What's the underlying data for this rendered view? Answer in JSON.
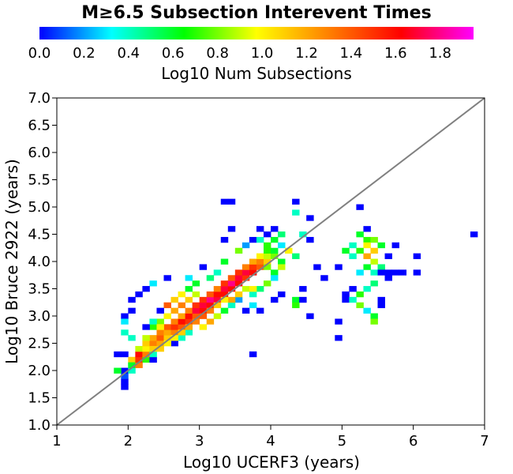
{
  "chart_data": {
    "type": "heatmap",
    "title": "M≥6.5 Subsection Interevent Times",
    "colorbar": {
      "label": "Log10 Num Subsections",
      "range": [
        0.0,
        1.95
      ],
      "ticks": [
        "0.0",
        "0.2",
        "0.4",
        "0.6",
        "0.8",
        "1.0",
        "1.2",
        "1.4",
        "1.6",
        "1.8"
      ],
      "colors": [
        "#0000ff",
        "#00ffff",
        "#00ff00",
        "#ffff00",
        "#ff8000",
        "#ff0000",
        "#ff00ff"
      ]
    },
    "xlabel": "Log10 UCERF3 (years)",
    "ylabel": "Log10 Bruce 2922 (years)",
    "xlim": [
      1,
      7
    ],
    "ylim": [
      1.0,
      7.0
    ],
    "xticks": [
      "1",
      "2",
      "3",
      "4",
      "5",
      "6",
      "7"
    ],
    "yticks": [
      "1.0",
      "1.5",
      "2.0",
      "2.5",
      "3.0",
      "3.5",
      "4.0",
      "4.5",
      "5.0",
      "5.5",
      "6.0",
      "6.5",
      "7.0"
    ],
    "reference_line": {
      "from": [
        1,
        1
      ],
      "to": [
        7,
        7
      ]
    },
    "bin_size": [
      0.1,
      0.1
    ],
    "cells": [
      [
        1.95,
        1.7,
        0.0
      ],
      [
        1.95,
        1.8,
        0.0
      ],
      [
        1.95,
        1.9,
        0.1
      ],
      [
        1.95,
        2.0,
        0.0
      ],
      [
        1.85,
        2.0,
        0.6
      ],
      [
        1.85,
        2.3,
        0.0
      ],
      [
        1.95,
        2.3,
        0.0
      ],
      [
        2.05,
        2.0,
        0.4
      ],
      [
        2.05,
        2.1,
        0.5
      ],
      [
        2.05,
        2.2,
        1.1
      ],
      [
        2.05,
        2.1,
        0.6
      ],
      [
        2.15,
        2.1,
        1.3
      ],
      [
        2.15,
        2.2,
        1.5
      ],
      [
        2.15,
        2.3,
        1.6
      ],
      [
        2.15,
        2.4,
        0.9
      ],
      [
        2.25,
        2.2,
        0.7
      ],
      [
        2.25,
        2.3,
        1.3
      ],
      [
        2.25,
        2.4,
        1.0
      ],
      [
        2.25,
        2.5,
        1.1
      ],
      [
        2.35,
        2.2,
        0.0
      ],
      [
        2.35,
        2.3,
        0.4
      ],
      [
        2.35,
        2.5,
        1.3
      ],
      [
        2.35,
        2.6,
        1.2
      ],
      [
        2.45,
        2.5,
        1.2
      ],
      [
        2.45,
        2.6,
        1.4
      ],
      [
        2.45,
        2.7,
        1.3
      ],
      [
        2.55,
        2.6,
        1.1
      ],
      [
        2.55,
        2.7,
        1.2
      ],
      [
        2.55,
        2.8,
        1.4
      ],
      [
        2.65,
        2.7,
        1.3
      ],
      [
        2.65,
        2.8,
        1.5
      ],
      [
        2.65,
        2.9,
        1.3
      ],
      [
        2.75,
        2.8,
        1.4
      ],
      [
        2.75,
        2.9,
        1.6
      ],
      [
        2.75,
        3.0,
        1.2
      ],
      [
        2.85,
        2.9,
        1.5
      ],
      [
        2.85,
        3.0,
        1.6
      ],
      [
        2.85,
        3.1,
        1.3
      ],
      [
        2.95,
        3.0,
        1.4
      ],
      [
        2.95,
        3.1,
        1.7
      ],
      [
        2.95,
        3.2,
        1.5
      ],
      [
        3.05,
        3.1,
        1.6
      ],
      [
        3.05,
        3.2,
        1.7
      ],
      [
        3.05,
        3.3,
        1.5
      ],
      [
        3.15,
        3.2,
        1.6
      ],
      [
        3.15,
        3.3,
        1.8
      ],
      [
        3.15,
        3.4,
        1.4
      ],
      [
        3.25,
        3.3,
        1.7
      ],
      [
        3.25,
        3.4,
        1.6
      ],
      [
        3.25,
        3.5,
        1.3
      ],
      [
        3.35,
        3.4,
        1.6
      ],
      [
        3.35,
        3.5,
        1.7
      ],
      [
        3.35,
        3.6,
        1.5
      ],
      [
        3.45,
        3.5,
        1.6
      ],
      [
        3.45,
        3.6,
        1.8
      ],
      [
        3.45,
        3.7,
        1.4
      ],
      [
        3.55,
        3.6,
        1.6
      ],
      [
        3.55,
        3.7,
        1.7
      ],
      [
        3.55,
        3.8,
        1.5
      ],
      [
        3.65,
        3.7,
        1.5
      ],
      [
        3.65,
        3.8,
        1.7
      ],
      [
        3.65,
        3.9,
        1.3
      ],
      [
        3.75,
        3.8,
        1.6
      ],
      [
        3.75,
        3.9,
        1.5
      ],
      [
        3.75,
        4.0,
        1.2
      ],
      [
        3.85,
        3.9,
        1.4
      ],
      [
        3.85,
        4.0,
        1.3
      ],
      [
        3.85,
        4.1,
        1.0
      ],
      [
        3.95,
        4.0,
        1.1
      ],
      [
        3.95,
        4.1,
        0.9
      ],
      [
        3.95,
        4.2,
        0.7
      ],
      [
        4.05,
        4.1,
        0.8
      ],
      [
        4.05,
        4.2,
        0.6
      ],
      [
        4.15,
        4.0,
        0.6
      ],
      [
        4.15,
        3.9,
        0.9
      ],
      [
        2.35,
        2.8,
        0.7
      ],
      [
        2.45,
        2.9,
        0.8
      ],
      [
        2.55,
        3.0,
        1.0
      ],
      [
        2.65,
        3.1,
        1.2
      ],
      [
        2.75,
        3.2,
        1.3
      ],
      [
        2.85,
        3.3,
        1.1
      ],
      [
        2.95,
        3.4,
        0.9
      ],
      [
        2.55,
        3.2,
        1.4
      ],
      [
        2.65,
        3.3,
        1.1
      ],
      [
        2.75,
        3.4,
        1.0
      ],
      [
        2.85,
        3.5,
        0.6
      ],
      [
        3.05,
        2.8,
        1.0
      ],
      [
        3.15,
        2.9,
        1.2
      ],
      [
        3.25,
        3.0,
        0.9
      ],
      [
        3.35,
        3.1,
        0.6
      ],
      [
        3.45,
        3.2,
        0.4
      ],
      [
        3.55,
        3.3,
        0.2
      ],
      [
        3.65,
        3.1,
        0.0
      ],
      [
        3.75,
        3.2,
        0.3
      ],
      [
        3.85,
        3.1,
        0.0
      ],
      [
        4.05,
        3.3,
        0.0
      ],
      [
        4.15,
        3.4,
        0.0
      ],
      [
        4.35,
        3.3,
        0.6
      ],
      [
        4.35,
        3.2,
        0.7
      ],
      [
        4.45,
        3.3,
        0.0
      ],
      [
        4.45,
        3.5,
        0.0
      ],
      [
        4.55,
        3.0,
        0.0
      ],
      [
        3.75,
        2.3,
        0.0
      ],
      [
        3.35,
        4.4,
        0.0
      ],
      [
        3.45,
        4.6,
        0.0
      ],
      [
        3.45,
        5.1,
        0.0
      ],
      [
        3.35,
        5.1,
        0.0
      ],
      [
        3.75,
        4.4,
        0.0
      ],
      [
        4.35,
        5.1,
        0.0
      ],
      [
        4.35,
        4.9,
        0.4
      ],
      [
        4.55,
        4.8,
        0.0
      ],
      [
        4.45,
        4.5,
        0.4
      ],
      [
        4.55,
        4.4,
        0.0
      ],
      [
        4.65,
        3.9,
        0.0
      ],
      [
        4.95,
        3.9,
        0.0
      ],
      [
        4.75,
        3.7,
        0.0
      ],
      [
        4.05,
        4.4,
        0.6
      ],
      [
        4.15,
        4.3,
        0.3
      ],
      [
        4.25,
        4.2,
        1.0
      ],
      [
        4.35,
        4.1,
        0.5
      ],
      [
        3.95,
        4.3,
        0.7
      ],
      [
        3.85,
        4.4,
        0.4
      ],
      [
        3.65,
        4.3,
        0.2
      ],
      [
        3.55,
        4.2,
        0.8
      ],
      [
        3.35,
        4.0,
        0.6
      ],
      [
        3.25,
        3.8,
        0.4
      ],
      [
        3.05,
        3.9,
        0.0
      ],
      [
        3.15,
        3.7,
        0.5
      ],
      [
        2.95,
        3.6,
        0.6
      ],
      [
        2.85,
        3.7,
        0.3
      ],
      [
        2.55,
        3.7,
        0.0
      ],
      [
        2.35,
        3.6,
        0.3
      ],
      [
        2.25,
        3.5,
        0.0
      ],
      [
        2.15,
        3.4,
        0.0
      ],
      [
        2.05,
        3.3,
        0.0
      ],
      [
        2.05,
        3.1,
        0.0
      ],
      [
        1.95,
        3.0,
        0.0
      ],
      [
        1.95,
        2.9,
        0.3
      ],
      [
        1.95,
        2.7,
        0.4
      ],
      [
        2.05,
        2.6,
        0.4
      ],
      [
        2.25,
        2.8,
        0.0
      ],
      [
        2.35,
        2.9,
        0.4
      ],
      [
        2.45,
        3.1,
        0.0
      ],
      [
        2.65,
        2.5,
        0.0
      ],
      [
        2.75,
        2.6,
        0.4
      ],
      [
        2.85,
        2.7,
        0.4
      ],
      [
        5.25,
        5.0,
        0.0
      ],
      [
        5.25,
        4.5,
        0.6
      ],
      [
        5.35,
        4.4,
        0.7
      ],
      [
        5.45,
        4.4,
        0.8
      ],
      [
        5.55,
        4.3,
        0.6
      ],
      [
        5.35,
        4.3,
        1.0
      ],
      [
        5.45,
        4.2,
        1.1
      ],
      [
        5.25,
        4.2,
        0.7
      ],
      [
        5.15,
        4.1,
        0.4
      ],
      [
        5.05,
        4.2,
        0.6
      ],
      [
        5.15,
        4.3,
        0.4
      ],
      [
        5.35,
        4.1,
        1.2
      ],
      [
        5.45,
        4.0,
        0.9
      ],
      [
        5.55,
        3.9,
        0.5
      ],
      [
        5.35,
        3.9,
        0.6
      ],
      [
        5.25,
        3.8,
        0.3
      ],
      [
        5.45,
        3.8,
        0.4
      ],
      [
        5.55,
        3.8,
        0.0
      ],
      [
        5.65,
        3.8,
        0.0
      ],
      [
        5.75,
        3.8,
        0.0
      ],
      [
        5.85,
        3.8,
        0.0
      ],
      [
        5.65,
        3.7,
        0.0
      ],
      [
        5.45,
        3.6,
        0.5
      ],
      [
        5.35,
        3.5,
        0.4
      ],
      [
        5.25,
        3.4,
        0.7
      ],
      [
        5.15,
        3.5,
        0.0
      ],
      [
        5.05,
        3.4,
        0.0
      ],
      [
        5.05,
        3.3,
        0.0
      ],
      [
        5.25,
        3.2,
        0.8
      ],
      [
        5.35,
        3.1,
        0.3
      ],
      [
        5.45,
        3.0,
        0.6
      ],
      [
        5.45,
        2.9,
        0.8
      ],
      [
        5.55,
        3.3,
        0.0
      ],
      [
        5.55,
        3.2,
        0.0
      ],
      [
        5.15,
        3.3,
        0.4
      ],
      [
        4.95,
        2.9,
        0.0
      ],
      [
        4.95,
        2.6,
        0.0
      ],
      [
        5.35,
        4.6,
        0.0
      ],
      [
        5.75,
        4.3,
        0.0
      ],
      [
        5.65,
        4.1,
        0.0
      ],
      [
        6.05,
        4.1,
        0.0
      ],
      [
        6.05,
        3.8,
        0.0
      ],
      [
        6.85,
        4.5,
        0.0
      ],
      [
        4.15,
        4.5,
        0.5
      ],
      [
        4.05,
        4.6,
        0.0
      ],
      [
        3.95,
        4.5,
        0.0
      ],
      [
        3.85,
        4.6,
        0.0
      ],
      [
        3.95,
        3.9,
        0.8
      ],
      [
        4.05,
        3.8,
        0.6
      ],
      [
        4.05,
        3.7,
        0.3
      ],
      [
        3.95,
        3.6,
        0.8
      ],
      [
        3.85,
        3.5,
        0.5
      ],
      [
        3.75,
        3.4,
        0.4
      ],
      [
        3.65,
        3.5,
        0.9
      ],
      [
        3.75,
        3.5,
        1.0
      ],
      [
        3.55,
        3.4,
        1.1
      ],
      [
        3.45,
        3.3,
        1.2
      ],
      [
        3.35,
        3.3,
        1.0
      ],
      [
        3.25,
        3.2,
        1.1
      ],
      [
        3.15,
        3.1,
        1.3
      ],
      [
        3.05,
        3.0,
        1.4
      ],
      [
        2.95,
        2.9,
        1.3
      ],
      [
        2.85,
        2.8,
        1.2
      ],
      [
        2.75,
        2.7,
        1.1
      ],
      [
        2.65,
        2.6,
        1.0
      ],
      [
        2.55,
        2.5,
        1.0
      ],
      [
        2.45,
        2.4,
        1.1
      ],
      [
        2.35,
        2.4,
        1.1
      ],
      [
        2.25,
        2.6,
        0.9
      ],
      [
        2.45,
        2.8,
        1.0
      ]
    ]
  }
}
